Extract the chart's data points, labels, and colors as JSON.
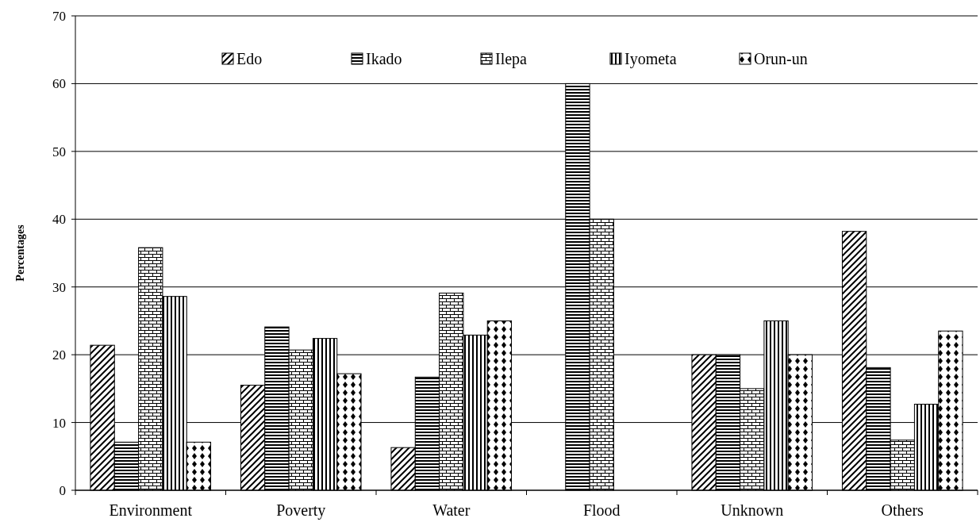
{
  "chart_data": {
    "type": "bar",
    "ylabel": "Percentages",
    "categories": [
      "Environment",
      "Poverty",
      "Water",
      "Flood",
      "Unknown",
      "Others"
    ],
    "series": [
      {
        "name": "Edo",
        "color": "#000000",
        "values": [
          21.4,
          15.5,
          6.3,
          null,
          20,
          38.2
        ]
      },
      {
        "name": "Ikado",
        "color": "#000000",
        "values": [
          7.1,
          24.1,
          16.7,
          60,
          20,
          18.1
        ]
      },
      {
        "name": "Ilepa",
        "color": "#000000",
        "values": [
          35.8,
          20.7,
          29.1,
          40,
          15,
          7.4
        ]
      },
      {
        "name": "Iyometa",
        "color": "#000000",
        "values": [
          28.6,
          22.4,
          22.9,
          null,
          25,
          12.7
        ]
      },
      {
        "name": "Orun-un",
        "color": "#000000",
        "values": [
          7.1,
          17.2,
          25.0,
          null,
          20,
          23.5
        ]
      }
    ],
    "ylim": [
      0,
      70
    ],
    "yticks": [
      0,
      10,
      20,
      30,
      40,
      50,
      60,
      70
    ],
    "grid": "y",
    "legend": "top"
  }
}
